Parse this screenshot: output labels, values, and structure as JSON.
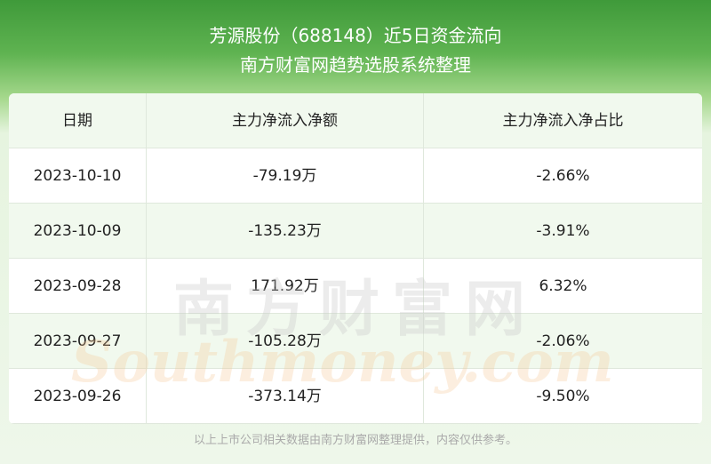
{
  "header": {
    "title_line1": "芳源股份（688148）近5日资金流向",
    "title_line2": "南方财富网趋势选股系统整理"
  },
  "table": {
    "headers": [
      "日期",
      "主力净流入净额",
      "主力净流入净占比"
    ],
    "rows": [
      [
        "2023-10-10",
        "-79.19万",
        "-2.66%"
      ],
      [
        "2023-10-09",
        "-135.23万",
        "-3.91%"
      ],
      [
        "2023-09-28",
        "171.92万",
        "6.32%"
      ],
      [
        "2023-09-27",
        "-105.28万",
        "-2.06%"
      ],
      [
        "2023-09-26",
        "-373.14万",
        "-9.50%"
      ]
    ]
  },
  "watermark": {
    "cn": "南方财富网",
    "en": "Southmoney.com"
  },
  "footer": "以上上市公司相关数据由南方财富网整理提供，内容仅供参考。"
}
